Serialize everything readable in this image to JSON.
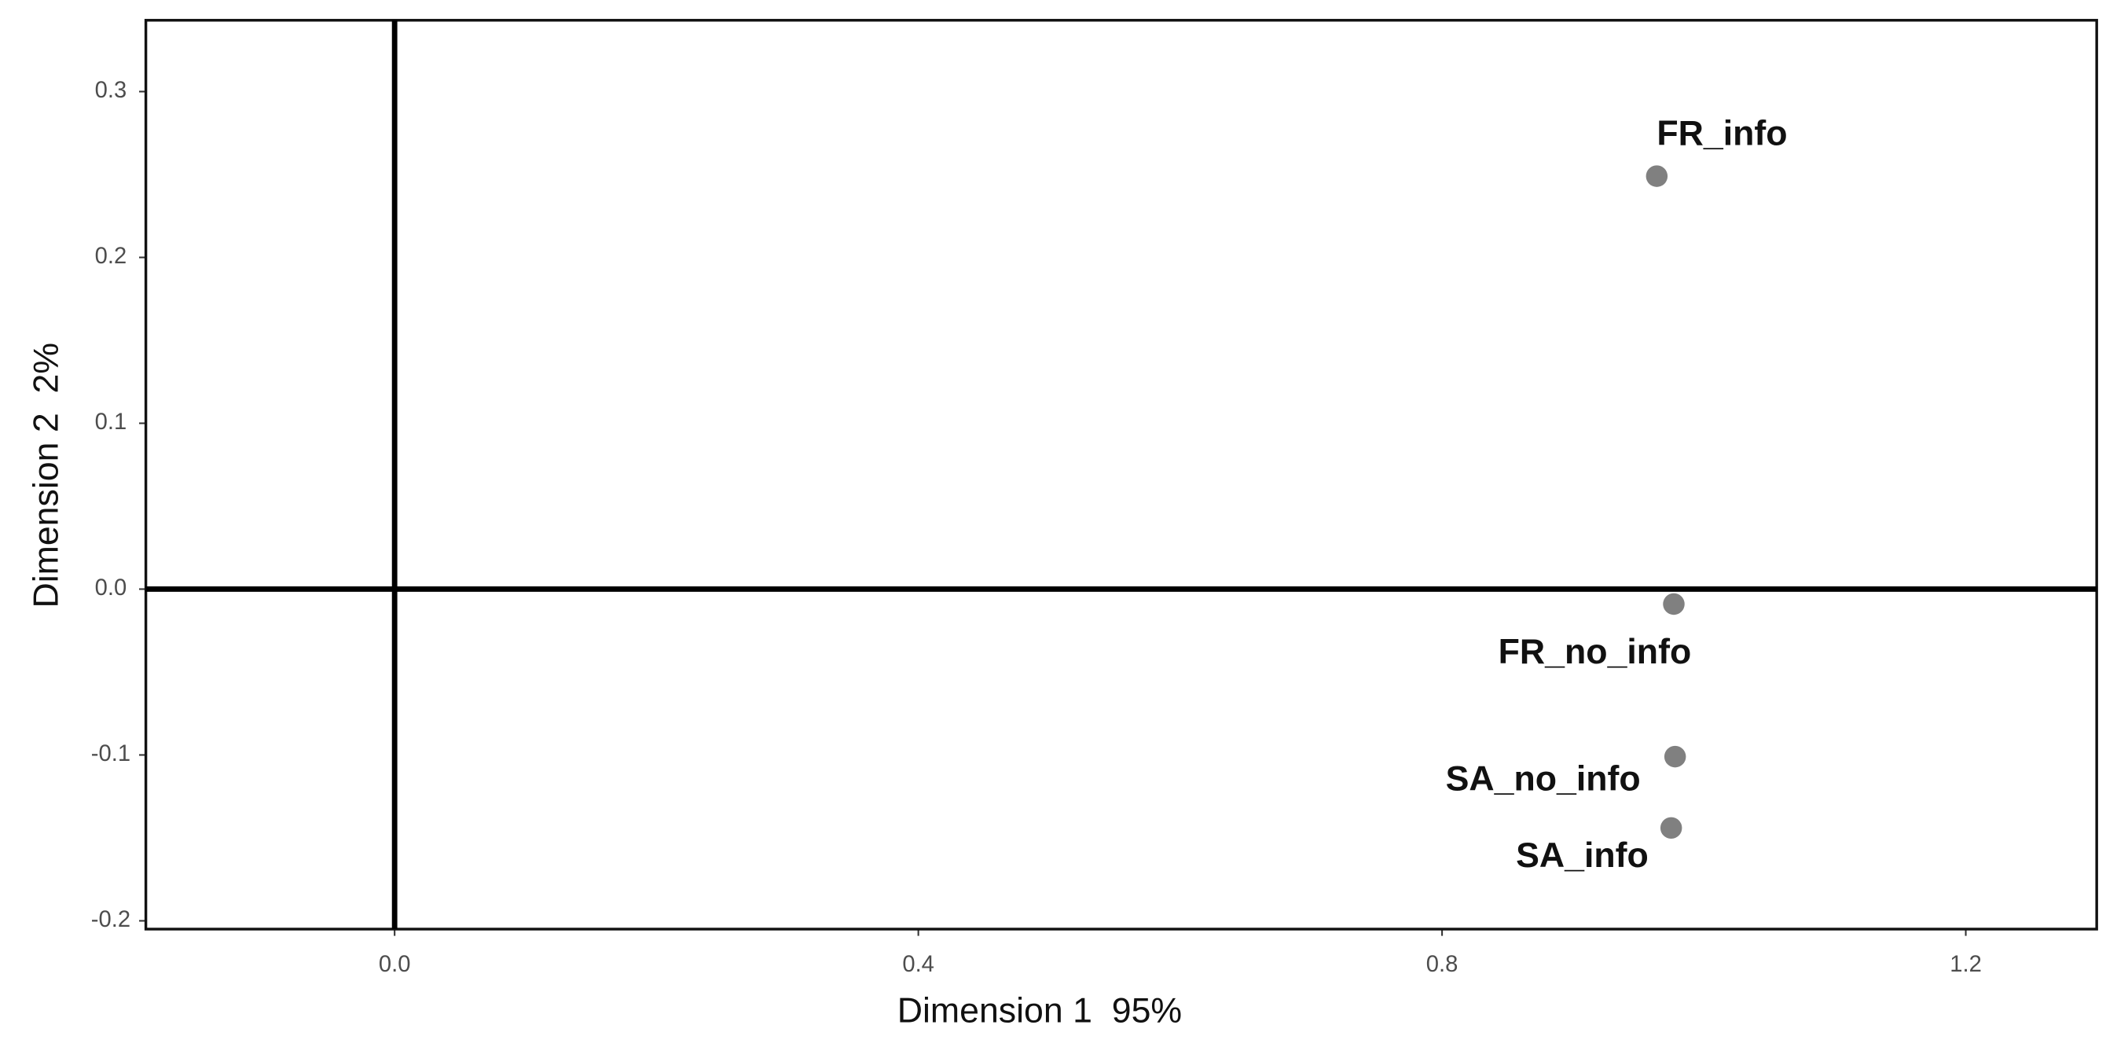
{
  "chart_data": {
    "type": "scatter",
    "xlabel": "Dimension 1  95%",
    "ylabel": "Dimension 2  2%",
    "x": [
      0.964,
      0.977,
      0.978,
      0.975
    ],
    "values": [
      0.249,
      -0.009,
      -0.101,
      -0.144
    ],
    "labels": [
      "FR_info",
      "FR_no_info",
      "SA_no_info",
      "SA_info"
    ],
    "color": "#808080",
    "xlim": [
      -0.19,
      1.3
    ],
    "ylim": [
      -0.205,
      0.343
    ],
    "xticks": [
      {
        "value": 0,
        "label": "0.0"
      },
      0.4,
      0.8,
      1.2
    ],
    "yticks": [
      -0.2,
      -0.1,
      {
        "value": 0,
        "label": "0.0"
      },
      0.1,
      0.2,
      0.3
    ],
    "reference_lines": {
      "x": 0,
      "y": 0
    },
    "grid": false
  }
}
